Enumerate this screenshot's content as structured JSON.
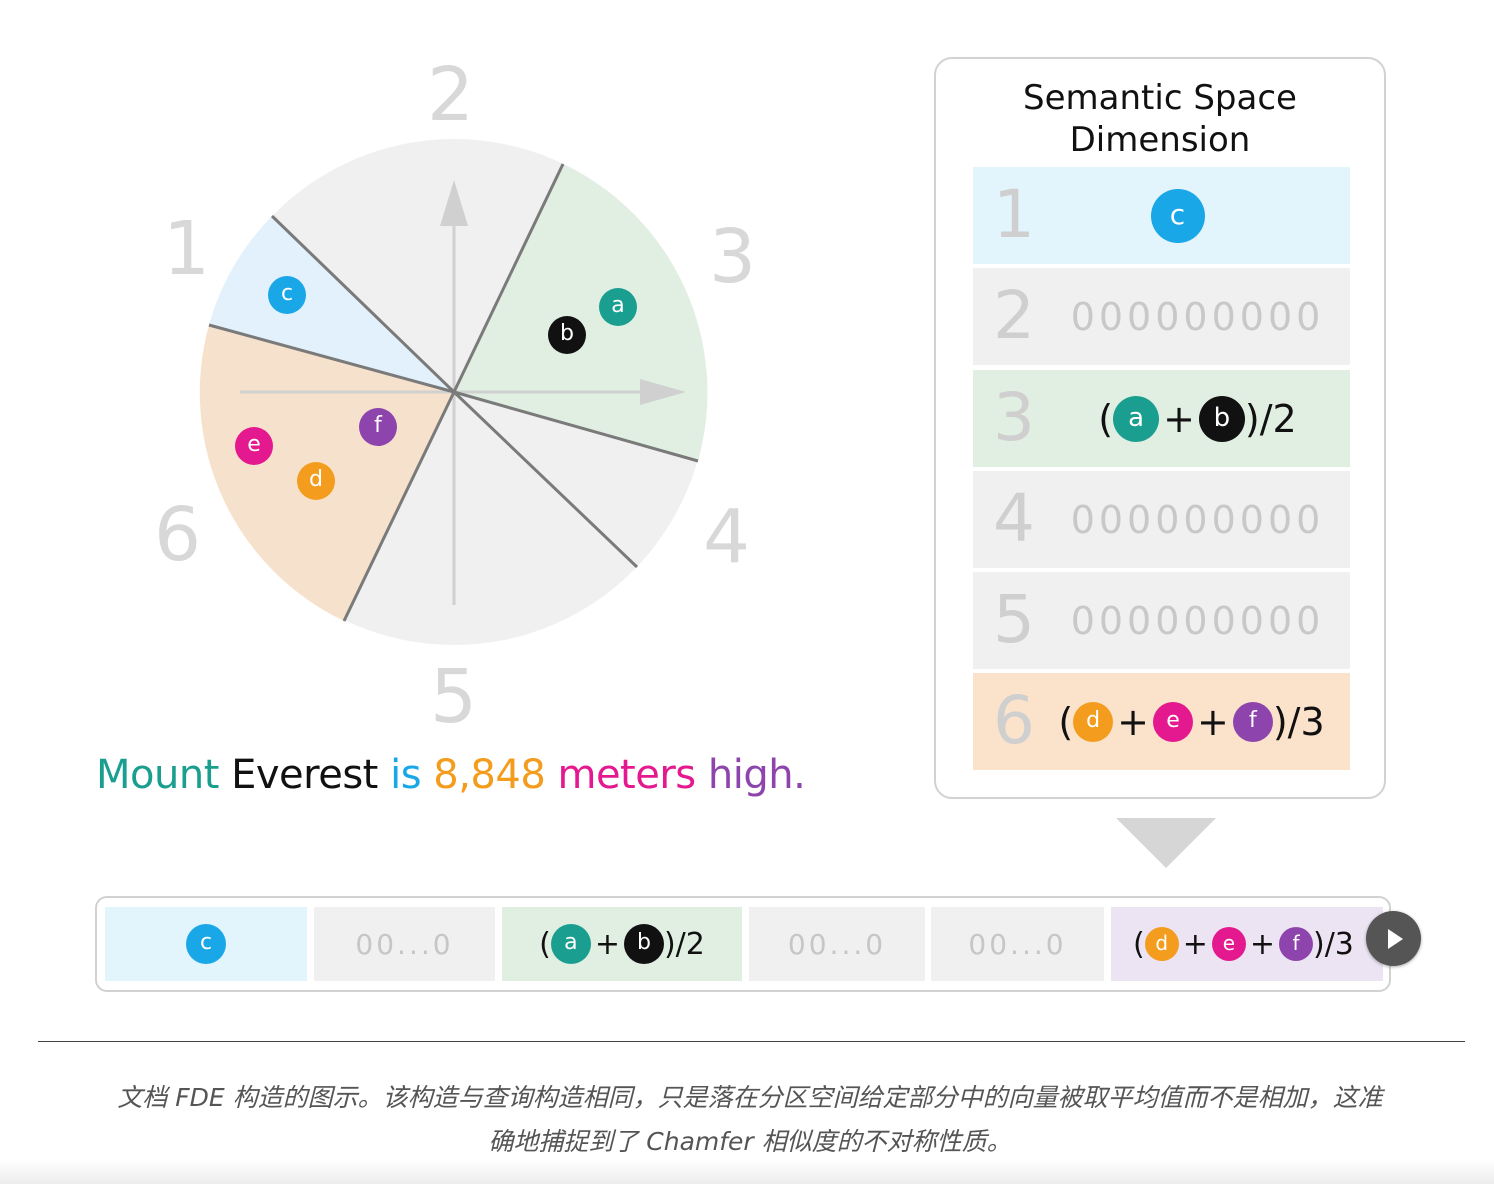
{
  "colors": {
    "c": "#1aa7e8",
    "a": "#1a9e8f",
    "b": "#111111",
    "d": "#f39c1e",
    "e": "#e5198f",
    "f": "#8e44ad",
    "region_1": "#e2f1fb",
    "region_3": "#e1efe3",
    "region_6": "#f6e2cc",
    "region_gray": "#f0f0f0"
  },
  "diagram": {
    "sector_numbers": [
      "1",
      "2",
      "3",
      "4",
      "5",
      "6"
    ],
    "tokens": {
      "c": "c",
      "a": "a",
      "b": "b",
      "e": "e",
      "d": "d",
      "f": "f"
    }
  },
  "sentence": [
    {
      "text": "Mount",
      "color": "#1a9e8f"
    },
    {
      "text": " ",
      "color": "#111111"
    },
    {
      "text": "Everest",
      "color": "#111111"
    },
    {
      "text": " ",
      "color": "#111111"
    },
    {
      "text": "is",
      "color": "#1aa7e8"
    },
    {
      "text": " ",
      "color": "#111111"
    },
    {
      "text": "8,848",
      "color": "#f39c1e"
    },
    {
      "text": " ",
      "color": "#111111"
    },
    {
      "text": "meters",
      "color": "#e5198f"
    },
    {
      "text": " ",
      "color": "#111111"
    },
    {
      "text": "high.",
      "color": "#8e44ad"
    }
  ],
  "panel": {
    "title_line1": "Semantic Space",
    "title_line2": "Dimension",
    "rows": [
      {
        "num": "1",
        "zeros": ""
      },
      {
        "num": "2",
        "zeros": "000000000"
      },
      {
        "num": "3",
        "zeros": "",
        "suffix": ")/2"
      },
      {
        "num": "4",
        "zeros": "000000000"
      },
      {
        "num": "5",
        "zeros": "000000000"
      },
      {
        "num": "6",
        "zeros": "",
        "suffix": ")/3"
      }
    ]
  },
  "vector": {
    "zeros": "00...0",
    "suffix_2": ")/2",
    "suffix_3": ")/3"
  },
  "caption": {
    "line1": "文档 FDE 构造的图示。该构造与查询构造相同，只是落在分区空间给定部分中的向量被取平均值而不是相加，这准",
    "line2": "确地捕捉到了 Chamfer 相似度的不对称性质。"
  }
}
